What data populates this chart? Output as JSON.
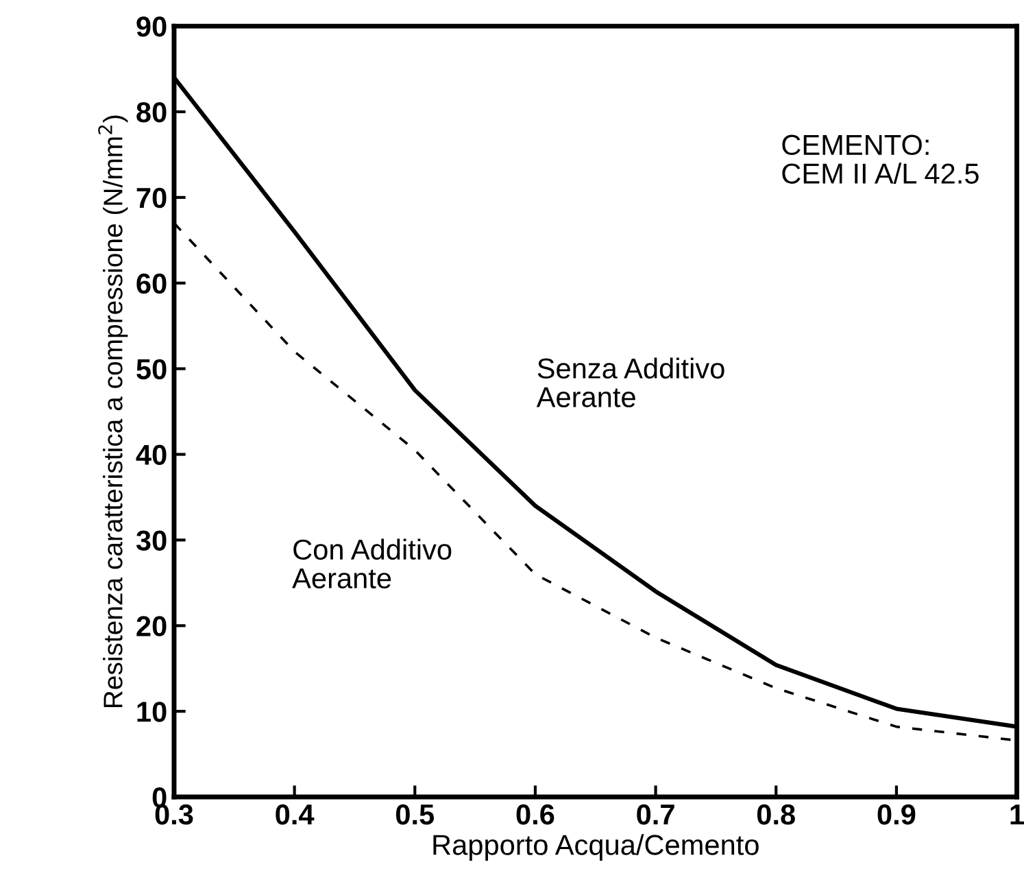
{
  "chart_data": {
    "type": "line",
    "xlabel": "Rapporto Acqua/Cemento",
    "ylabel": "Resistenza caratteristica a compressione (N/mm$^{2}$)",
    "x": [
      0.3,
      0.4,
      0.5,
      0.6,
      0.7,
      0.8,
      0.9,
      1.0
    ],
    "series": [
      {
        "name": "Senza Additivo\nAerante",
        "color": "#000000",
        "line_style": "solid",
        "values": [
          84,
          66,
          47.5,
          34,
          24,
          15.4,
          10.3,
          8.2
        ]
      },
      {
        "name": "Con Additivo\nAerante",
        "color": "#000000",
        "line_style": "dashed",
        "values": [
          67,
          52,
          40.5,
          26,
          18.6,
          12.7,
          8.2,
          6.6
        ]
      }
    ],
    "annotations": [
      "CEMENTO:\nCEM II A/L 42.5"
    ],
    "xlim": [
      0.3,
      1.0
    ],
    "ylim": [
      0,
      90
    ],
    "xticks": [
      0.3,
      0.4,
      0.5,
      0.6,
      0.7,
      0.8,
      0.9,
      {
        "value": 1.0,
        "label": "1"
      }
    ],
    "yticks": [
      0,
      10,
      20,
      30,
      40,
      50,
      60,
      70,
      80,
      90
    ],
    "grid": false,
    "legend": false,
    "marker": "none"
  }
}
